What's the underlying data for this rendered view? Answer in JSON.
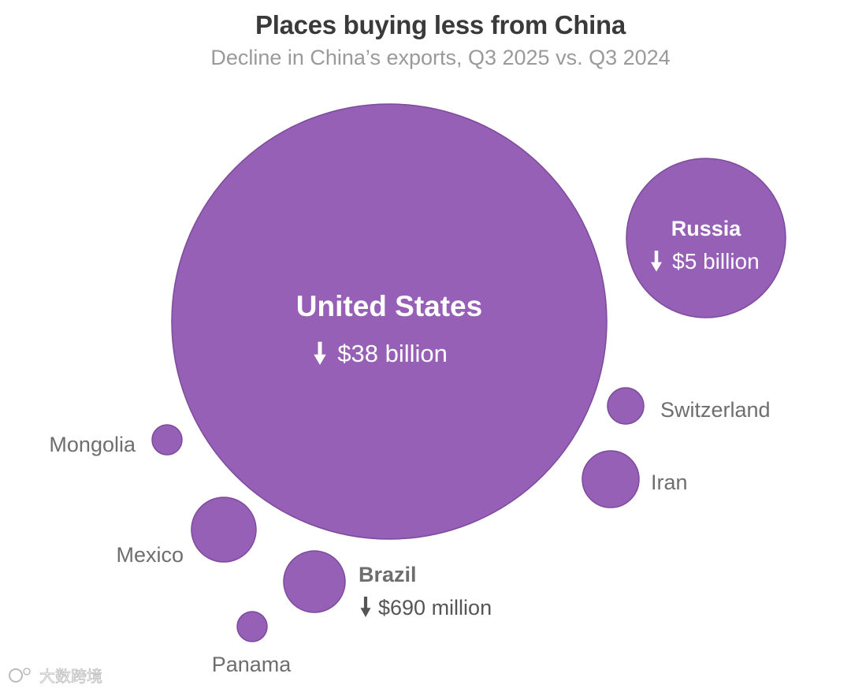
{
  "chart_data": {
    "type": "bubble",
    "title": "Places buying less from China",
    "subtitle": "Decline in China’s exports, Q3 2025 vs. Q3 2024",
    "bubble_color": "#9660b6",
    "countries": [
      {
        "name": "United States",
        "value_label": "$38 billion",
        "value_usd_billion": 38
      },
      {
        "name": "Russia",
        "value_label": "$5 billion",
        "value_usd_billion": 5
      },
      {
        "name": "Switzerland"
      },
      {
        "name": "Mongolia"
      },
      {
        "name": "Iran"
      },
      {
        "name": "Mexico"
      },
      {
        "name": "Brazil",
        "value_label": "$690 million",
        "value_usd_billion": 0.69
      },
      {
        "name": "Panama"
      }
    ]
  },
  "watermark": "大数跨境"
}
